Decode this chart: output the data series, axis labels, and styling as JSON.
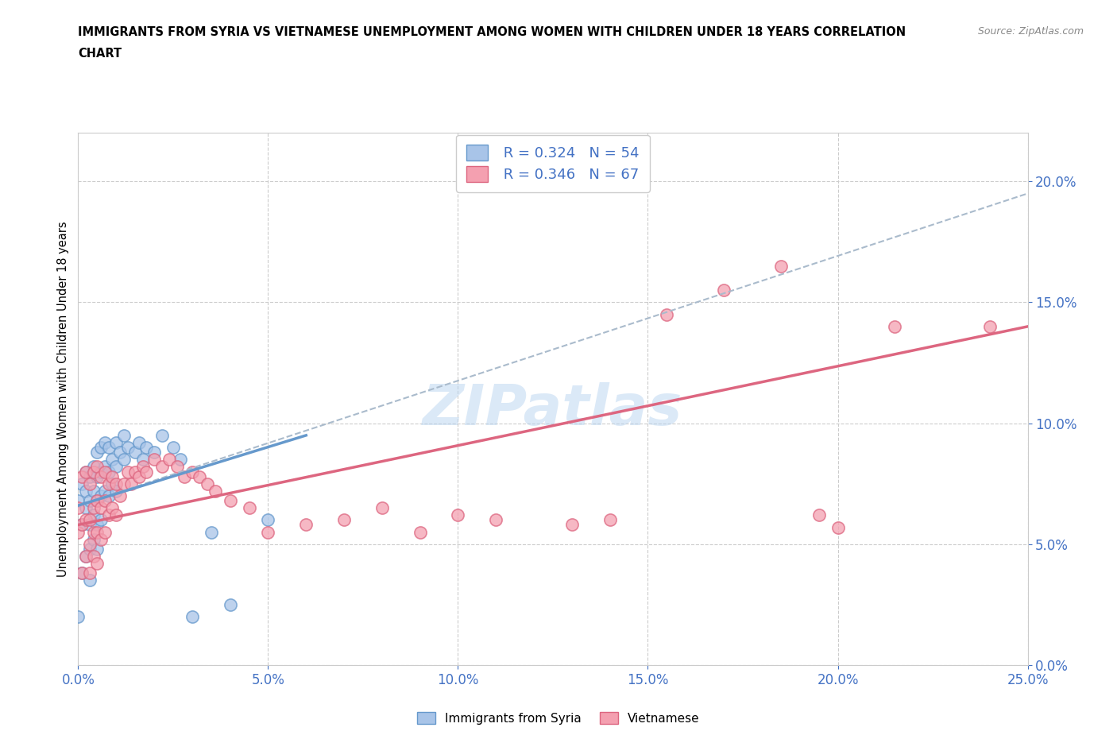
{
  "title_line1": "IMMIGRANTS FROM SYRIA VS VIETNAMESE UNEMPLOYMENT AMONG WOMEN WITH CHILDREN UNDER 18 YEARS CORRELATION",
  "title_line2": "CHART",
  "source": "Source: ZipAtlas.com",
  "xlabel_vals": [
    0.0,
    0.05,
    0.1,
    0.15,
    0.2,
    0.25
  ],
  "ytick_vals": [
    0.0,
    0.05,
    0.1,
    0.15,
    0.2
  ],
  "xmin": 0.0,
  "xmax": 0.25,
  "ymin": 0.0,
  "ymax": 0.22,
  "legend_r1": "R = 0.324",
  "legend_n1": "N = 54",
  "legend_r2": "R = 0.346",
  "legend_n2": "N = 67",
  "color_syria": "#a8c4e8",
  "color_vietnamese": "#f4a0b0",
  "color_trend_syria": "#6699cc",
  "color_trend_vietnamese": "#dd6680",
  "color_grid": "#cccccc",
  "color_text_blue": "#4472c4",
  "watermark": "ZIPatlas",
  "syria_x": [
    0.0,
    0.0,
    0.001,
    0.001,
    0.001,
    0.002,
    0.002,
    0.002,
    0.002,
    0.003,
    0.003,
    0.003,
    0.003,
    0.003,
    0.004,
    0.004,
    0.004,
    0.004,
    0.005,
    0.005,
    0.005,
    0.005,
    0.005,
    0.006,
    0.006,
    0.006,
    0.006,
    0.007,
    0.007,
    0.007,
    0.008,
    0.008,
    0.008,
    0.009,
    0.009,
    0.01,
    0.01,
    0.01,
    0.011,
    0.012,
    0.012,
    0.013,
    0.015,
    0.016,
    0.017,
    0.018,
    0.02,
    0.022,
    0.025,
    0.027,
    0.03,
    0.035,
    0.04,
    0.05
  ],
  "syria_y": [
    0.068,
    0.02,
    0.075,
    0.058,
    0.038,
    0.072,
    0.08,
    0.065,
    0.045,
    0.078,
    0.068,
    0.058,
    0.048,
    0.035,
    0.082,
    0.072,
    0.062,
    0.052,
    0.088,
    0.078,
    0.068,
    0.058,
    0.048,
    0.09,
    0.08,
    0.07,
    0.06,
    0.092,
    0.082,
    0.072,
    0.09,
    0.08,
    0.07,
    0.085,
    0.075,
    0.092,
    0.082,
    0.072,
    0.088,
    0.095,
    0.085,
    0.09,
    0.088,
    0.092,
    0.085,
    0.09,
    0.088,
    0.095,
    0.09,
    0.085,
    0.02,
    0.055,
    0.025,
    0.06
  ],
  "vietnamese_x": [
    0.0,
    0.0,
    0.001,
    0.001,
    0.001,
    0.002,
    0.002,
    0.002,
    0.003,
    0.003,
    0.003,
    0.003,
    0.004,
    0.004,
    0.004,
    0.004,
    0.005,
    0.005,
    0.005,
    0.005,
    0.006,
    0.006,
    0.006,
    0.007,
    0.007,
    0.007,
    0.008,
    0.008,
    0.009,
    0.009,
    0.01,
    0.01,
    0.011,
    0.012,
    0.013,
    0.014,
    0.015,
    0.016,
    0.017,
    0.018,
    0.02,
    0.022,
    0.024,
    0.026,
    0.028,
    0.03,
    0.032,
    0.034,
    0.036,
    0.04,
    0.045,
    0.05,
    0.06,
    0.07,
    0.08,
    0.09,
    0.1,
    0.11,
    0.13,
    0.14,
    0.155,
    0.17,
    0.185,
    0.195,
    0.2,
    0.215,
    0.24
  ],
  "vietnamese_y": [
    0.065,
    0.055,
    0.078,
    0.058,
    0.038,
    0.08,
    0.06,
    0.045,
    0.075,
    0.06,
    0.05,
    0.038,
    0.08,
    0.065,
    0.055,
    0.045,
    0.082,
    0.068,
    0.055,
    0.042,
    0.078,
    0.065,
    0.052,
    0.08,
    0.068,
    0.055,
    0.075,
    0.062,
    0.078,
    0.065,
    0.075,
    0.062,
    0.07,
    0.075,
    0.08,
    0.075,
    0.08,
    0.078,
    0.082,
    0.08,
    0.085,
    0.082,
    0.085,
    0.082,
    0.078,
    0.08,
    0.078,
    0.075,
    0.072,
    0.068,
    0.065,
    0.055,
    0.058,
    0.06,
    0.065,
    0.055,
    0.062,
    0.06,
    0.058,
    0.06,
    0.145,
    0.155,
    0.165,
    0.062,
    0.057,
    0.14,
    0.14
  ],
  "trend_syria_x0": 0.0,
  "trend_syria_x1": 0.25,
  "trend_syria_y0": 0.066,
  "trend_syria_y1": 0.195,
  "trend_viet_x0": 0.0,
  "trend_viet_x1": 0.25,
  "trend_viet_y0": 0.058,
  "trend_viet_y1": 0.14
}
